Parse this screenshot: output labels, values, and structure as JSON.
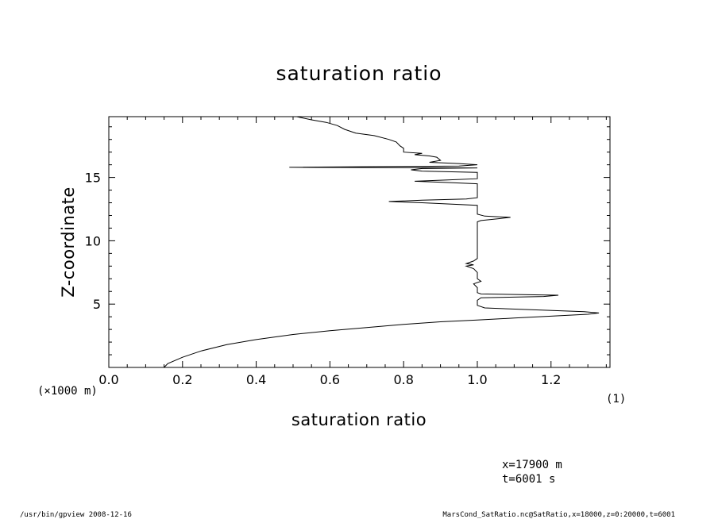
{
  "chart_data": {
    "type": "line",
    "title": "saturation ratio",
    "xlabel": "saturation ratio",
    "ylabel": "Z-coordinate",
    "y_unit_note": "(×1000 m)",
    "x_unit_note": "(1)",
    "xlim": [
      0.0,
      1.36
    ],
    "ylim": [
      0,
      19.8
    ],
    "x_ticks": [
      "0.0",
      "0.2",
      "0.4",
      "0.6",
      "0.8",
      "1.0",
      "1.2"
    ],
    "x_tick_values": [
      0.0,
      0.2,
      0.4,
      0.6,
      0.8,
      1.0,
      1.2
    ],
    "y_ticks": [
      "5",
      "10",
      "15"
    ],
    "y_tick_values": [
      5,
      10,
      15
    ],
    "series": [
      {
        "points": [
          [
            0.15,
            0.0
          ],
          [
            0.16,
            0.3
          ],
          [
            0.2,
            0.8
          ],
          [
            0.25,
            1.3
          ],
          [
            0.32,
            1.8
          ],
          [
            0.4,
            2.2
          ],
          [
            0.5,
            2.6
          ],
          [
            0.6,
            2.9
          ],
          [
            0.7,
            3.15
          ],
          [
            0.8,
            3.4
          ],
          [
            0.9,
            3.6
          ],
          [
            1.0,
            3.75
          ],
          [
            1.1,
            3.9
          ],
          [
            1.2,
            4.05
          ],
          [
            1.3,
            4.2
          ],
          [
            1.33,
            4.3
          ],
          [
            1.29,
            4.4
          ],
          [
            1.02,
            4.7
          ],
          [
            1.0,
            4.9
          ],
          [
            1.0,
            5.3
          ],
          [
            1.01,
            5.5
          ],
          [
            1.18,
            5.6
          ],
          [
            1.22,
            5.7
          ],
          [
            1.01,
            5.8
          ],
          [
            1.0,
            5.9
          ],
          [
            1.0,
            6.3
          ],
          [
            0.99,
            6.6
          ],
          [
            1.01,
            6.8
          ],
          [
            1.0,
            7.0
          ],
          [
            1.0,
            7.5
          ],
          [
            0.99,
            7.8
          ],
          [
            0.97,
            8.0
          ],
          [
            0.99,
            8.1
          ],
          [
            0.97,
            8.2
          ],
          [
            0.99,
            8.4
          ],
          [
            1.0,
            8.6
          ],
          [
            1.0,
            9.5
          ],
          [
            1.0,
            10.5
          ],
          [
            1.0,
            11.5
          ],
          [
            1.01,
            11.6
          ],
          [
            1.06,
            11.75
          ],
          [
            1.09,
            11.85
          ],
          [
            1.02,
            11.95
          ],
          [
            1.0,
            12.1
          ],
          [
            1.0,
            12.5
          ],
          [
            1.0,
            12.8
          ],
          [
            0.85,
            13.0
          ],
          [
            0.76,
            13.1
          ],
          [
            0.85,
            13.2
          ],
          [
            0.97,
            13.3
          ],
          [
            1.0,
            13.4
          ],
          [
            1.0,
            14.5
          ],
          [
            0.92,
            14.6
          ],
          [
            0.83,
            14.7
          ],
          [
            0.92,
            14.8
          ],
          [
            1.0,
            14.9
          ],
          [
            1.0,
            15.4
          ],
          [
            0.85,
            15.5
          ],
          [
            0.82,
            15.6
          ],
          [
            0.85,
            15.7
          ],
          [
            1.0,
            15.75
          ],
          [
            0.49,
            15.8
          ],
          [
            0.95,
            15.9
          ],
          [
            1.0,
            16.0
          ],
          [
            0.95,
            16.1
          ],
          [
            0.87,
            16.2
          ],
          [
            0.9,
            16.35
          ],
          [
            0.89,
            16.6
          ],
          [
            0.87,
            16.7
          ],
          [
            0.83,
            16.8
          ],
          [
            0.85,
            16.9
          ],
          [
            0.8,
            17.0
          ],
          [
            0.8,
            17.3
          ],
          [
            0.79,
            17.5
          ],
          [
            0.78,
            17.8
          ],
          [
            0.76,
            18.0
          ],
          [
            0.72,
            18.3
          ],
          [
            0.67,
            18.5
          ],
          [
            0.64,
            18.8
          ],
          [
            0.62,
            19.1
          ],
          [
            0.59,
            19.35
          ],
          [
            0.55,
            19.55
          ],
          [
            0.51,
            19.8
          ]
        ]
      }
    ]
  },
  "annotations": {
    "position_x": "x=17900 m",
    "time": "t=6001 s"
  },
  "footer": {
    "left": "/usr/bin/gpview   2008-12-16",
    "right": "MarsCond_SatRatio.nc@SatRatio,x=18000,z=0:20000,t=6001"
  }
}
